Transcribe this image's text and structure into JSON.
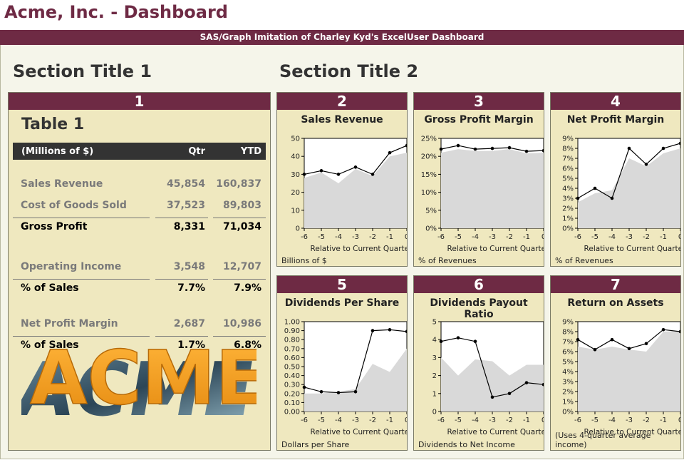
{
  "app_title": "Acme, Inc. - Dashboard",
  "banner": "SAS/Graph Imitation of Charley Kyd's ExcelUser Dashboard",
  "section1_title": "Section Title 1",
  "section2_title": "Section Title 2",
  "panel1": {
    "number": "1",
    "table_title": "Table 1",
    "headers": [
      "(Millions of $)",
      "Qtr",
      "YTD"
    ],
    "rows": [
      {
        "label": "Sales Revenue",
        "qtr": "45,854",
        "ytd": "160,837",
        "kind": "sub"
      },
      {
        "label": "Cost of Goods Sold",
        "qtr": "37,523",
        "ytd": "89,803",
        "kind": "sub"
      },
      {
        "label": "Gross Profit",
        "qtr": "8,331",
        "ytd": "71,034",
        "kind": "tot"
      },
      {
        "label": "Operating Income",
        "qtr": "3,548",
        "ytd": "12,707",
        "kind": "sub"
      },
      {
        "label": "% of Sales",
        "qtr": "7.7%",
        "ytd": "7.9%",
        "kind": "tot"
      },
      {
        "label": "Net Profit Margin",
        "qtr": "2,687",
        "ytd": "10,986",
        "kind": "sub"
      },
      {
        "label": "% of Sales",
        "qtr": "1.7%",
        "ytd": "6.8%",
        "kind": "tot"
      }
    ],
    "logo_text": "ACME"
  },
  "colors": {
    "accent": "#6e2a44",
    "panel_bg": "#efe8bf",
    "area": "#d9d9d9",
    "line": "#000000"
  },
  "chart_data": [
    {
      "number": "2",
      "type": "line",
      "title": "Sales Revenue",
      "xlabel": "Relative to Current Quarter",
      "footnote": "Billions of $",
      "x": [
        -6,
        -5,
        -4,
        -3,
        -2,
        -1,
        0
      ],
      "ylim": [
        0,
        50
      ],
      "yticks": [
        0,
        10,
        20,
        30,
        40,
        50
      ],
      "ytick_labels": [
        "0",
        "10",
        "20",
        "30",
        "40",
        "50"
      ],
      "series": [
        {
          "values": [
            30,
            32,
            30,
            34,
            30,
            42,
            46
          ]
        }
      ],
      "area": [
        28,
        31,
        25,
        33,
        29,
        40,
        42
      ]
    },
    {
      "number": "3",
      "type": "line",
      "title": "Gross Profit Margin",
      "xlabel": "Relative to Current Quarter",
      "footnote": "% of Revenues",
      "x": [
        -6,
        -5,
        -4,
        -3,
        -2,
        -1,
        0
      ],
      "ylim": [
        0,
        25
      ],
      "yticks": [
        0,
        5,
        10,
        15,
        20,
        25
      ],
      "ytick_labels": [
        "0%",
        "5%",
        "10%",
        "15%",
        "20%",
        "25%"
      ],
      "series": [
        {
          "values": [
            22,
            23,
            22,
            22.2,
            22.4,
            21.4,
            21.6
          ]
        }
      ],
      "area": [
        21,
        22,
        21.5,
        21.5,
        22,
        20.8,
        21
      ]
    },
    {
      "number": "4",
      "type": "line",
      "title": "Net Profit Margin",
      "xlabel": "Relative to Current Quarter",
      "footnote": "% of Revenues",
      "x": [
        -6,
        -5,
        -4,
        -3,
        -2,
        -1,
        0
      ],
      "ylim": [
        0,
        9
      ],
      "yticks": [
        0,
        1,
        2,
        3,
        4,
        5,
        6,
        7,
        8,
        9
      ],
      "ytick_labels": [
        "0%",
        "1%",
        "2%",
        "3%",
        "4%",
        "5%",
        "6%",
        "7%",
        "8%",
        "9%"
      ],
      "series": [
        {
          "values": [
            3,
            4,
            3,
            8,
            6.4,
            8,
            8.5
          ]
        }
      ],
      "area": [
        2.6,
        3.5,
        3.8,
        7,
        6.2,
        7.5,
        8
      ]
    },
    {
      "number": "5",
      "type": "line",
      "title": "Dividends Per Share",
      "xlabel": "Relative to Current Quarter",
      "footnote": "Dollars per Share",
      "x": [
        -6,
        -5,
        -4,
        -3,
        -2,
        -1,
        0
      ],
      "ylim": [
        0,
        1
      ],
      "yticks": [
        0,
        0.1,
        0.2,
        0.3,
        0.4,
        0.5,
        0.6,
        0.7,
        0.8,
        0.9,
        1.0
      ],
      "ytick_labels": [
        "0.00",
        "0.10",
        "0.20",
        "0.30",
        "0.40",
        "0.50",
        "0.60",
        "0.70",
        "0.80",
        "0.90",
        "1.00"
      ],
      "series": [
        {
          "values": [
            0.27,
            0.22,
            0.21,
            0.22,
            0.9,
            0.91,
            0.89
          ]
        }
      ],
      "area": [
        0.2,
        0.2,
        0.22,
        0.25,
        0.53,
        0.44,
        0.7
      ]
    },
    {
      "number": "6",
      "type": "line",
      "title": "Dividends Payout Ratio",
      "xlabel": "Relative to Current Quarter",
      "footnote": "Dividends to Net Income",
      "x": [
        -6,
        -5,
        -4,
        -3,
        -2,
        -1,
        0
      ],
      "ylim": [
        0,
        5
      ],
      "yticks": [
        0,
        1,
        2,
        3,
        4,
        5
      ],
      "ytick_labels": [
        "0",
        "1",
        "2",
        "3",
        "4",
        "5"
      ],
      "series": [
        {
          "values": [
            3.9,
            4.1,
            3.9,
            0.8,
            1,
            1.6,
            1.5
          ]
        }
      ],
      "area": [
        3,
        2,
        2.9,
        2.8,
        2,
        2.6,
        2.6
      ]
    },
    {
      "number": "7",
      "type": "line",
      "title": "Return on Assets",
      "xlabel": "Relative to Current Quarter",
      "footnote": "(Uses 4-quarter average income)",
      "x": [
        -6,
        -5,
        -4,
        -3,
        -2,
        -1,
        0
      ],
      "ylim": [
        0,
        9
      ],
      "yticks": [
        0,
        1,
        2,
        3,
        4,
        5,
        6,
        7,
        8,
        9
      ],
      "ytick_labels": [
        "0%",
        "1%",
        "2%",
        "3%",
        "4%",
        "5%",
        "6%",
        "7%",
        "8%",
        "9%"
      ],
      "series": [
        {
          "values": [
            7.2,
            6.2,
            7.2,
            6.3,
            6.8,
            8.2,
            8
          ]
        }
      ],
      "area": [
        6.5,
        6.2,
        6.5,
        6.2,
        6,
        8,
        8.1
      ]
    }
  ]
}
